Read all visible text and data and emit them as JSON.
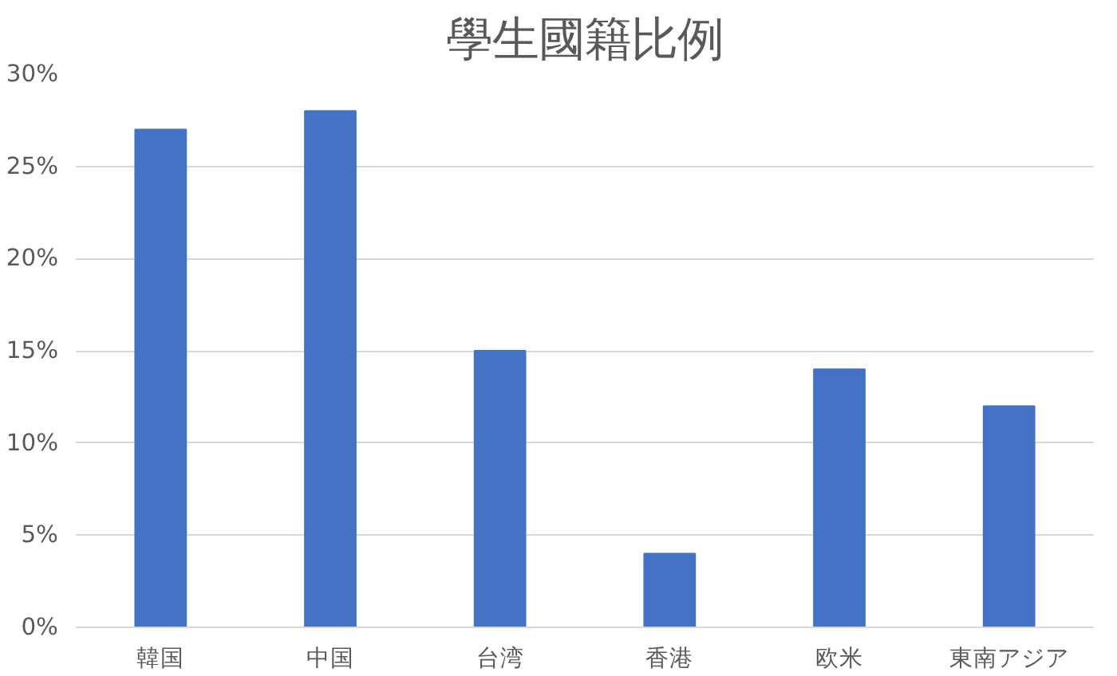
{
  "chart_data": {
    "type": "bar",
    "title": "學生國籍比例",
    "categories": [
      "韓国",
      "中国",
      "台湾",
      "香港",
      "欧米",
      "東南アジア"
    ],
    "values": [
      27,
      28,
      15,
      4,
      14,
      12
    ],
    "color": "#4472c4",
    "ylim": [
      0,
      30
    ],
    "yticks": [
      {
        "value": 0,
        "label": "0%"
      },
      {
        "value": 5,
        "label": "5%"
      },
      {
        "value": 10,
        "label": "10%"
      },
      {
        "value": 15,
        "label": "15%"
      },
      {
        "value": 20,
        "label": "20%"
      },
      {
        "value": 25,
        "label": "25%"
      },
      {
        "value": 30,
        "label": "30%"
      }
    ],
    "grid": "y"
  }
}
